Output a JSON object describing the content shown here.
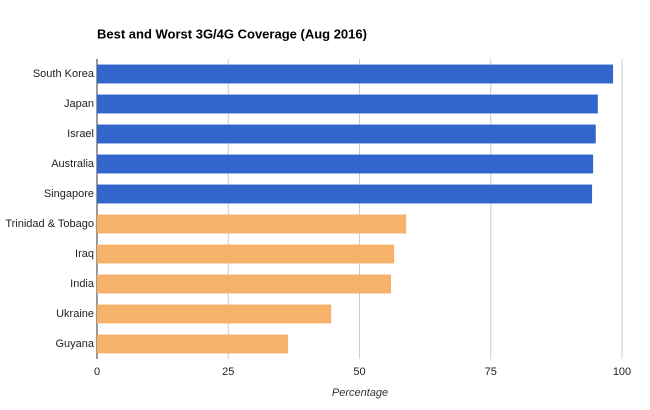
{
  "chart_data": {
    "type": "bar",
    "orientation": "horizontal",
    "title": "Best and Worst 3G/4G Coverage (Aug 2016)",
    "x_label": "Percentage",
    "categories": [
      "South Korea",
      "Japan",
      "Israel",
      "Australia",
      "Singapore",
      "Trinidad & Tobago",
      "Iraq",
      "India",
      "Ukraine",
      "Guyana"
    ],
    "values": [
      98.3,
      95.4,
      95.0,
      94.5,
      94.3,
      58.9,
      56.6,
      56.0,
      44.6,
      36.4
    ],
    "colors": [
      "#3366cc",
      "#3366cc",
      "#3366cc",
      "#3366cc",
      "#3366cc",
      "#f6b26b",
      "#f6b26b",
      "#f6b26b",
      "#f6b26b",
      "#f6b26b"
    ],
    "xlim": [
      0,
      100
    ],
    "xticks": [
      0,
      25,
      50,
      75,
      100
    ],
    "grid": true
  }
}
